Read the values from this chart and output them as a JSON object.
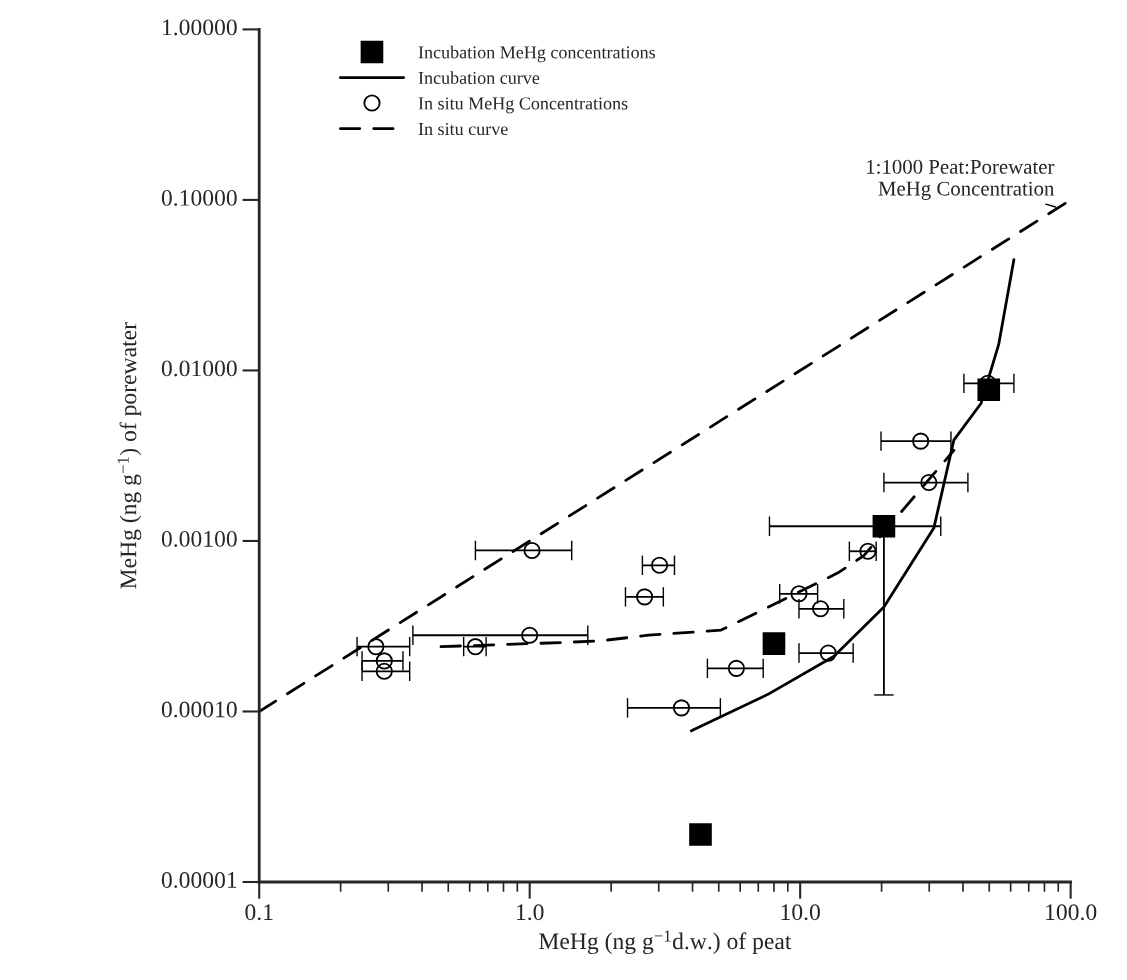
{
  "chart_data": {
    "type": "scatter",
    "xlabel": "MeHg (ng g$^{−1}$d.w.) of peat",
    "ylabel": "MeHg (ng g$^{−1}$) of porewater",
    "xlim": [
      0.1,
      100
    ],
    "xticks": [
      {
        "value": 0.1,
        "label": "0.1"
      },
      {
        "value": 1,
        "label": "1.0"
      },
      {
        "value": 10,
        "label": "10.0"
      },
      {
        "value": 100,
        "label": "100.0"
      }
    ],
    "ylim": [
      1e-05,
      1
    ],
    "yticks": [
      {
        "value": 1e-05,
        "label": "0.00001"
      },
      {
        "value": 0.0001,
        "label": "0.00010"
      },
      {
        "value": 0.001,
        "label": "0.00100"
      },
      {
        "value": 0.01,
        "label": "0.01000"
      },
      {
        "value": 0.1,
        "label": "0.10000"
      },
      {
        "value": 1,
        "label": "1.00000"
      }
    ],
    "log": "xy",
    "grid": false,
    "legend": "top left",
    "series": [
      {
        "name": "Incubation MeHg concentrations",
        "type": "scatter",
        "marker": "square",
        "color": "#000000",
        "x": [
          4.28,
          8.0,
          20.4,
          49.8
        ],
        "values": [
          1.9e-05,
          0.00025,
          0.00122,
          0.0077
        ],
        "xerrors": [
          null,
          null,
          [
            7.7,
            33.1
          ],
          null
        ],
        "errors": [
          null,
          null,
          [
            0.000125,
            0.00122
          ],
          null
        ]
      },
      {
        "name": "Incubation curve",
        "type": "line",
        "line_style": "solid",
        "color": "#000000",
        "x": [
          3.96,
          7.6,
          13.3,
          20.4,
          31.2,
          37.0,
          46.6,
          54.2,
          61.7
        ],
        "values": [
          7.7e-05,
          0.000126,
          0.00021,
          0.00041,
          0.00119,
          0.0039,
          0.0064,
          0.0142,
          0.0447
        ]
      },
      {
        "name": "In situ MeHg Concentrations",
        "type": "scatter",
        "marker": "circle",
        "color": "#000000",
        "x": [
          1.02,
          1.0,
          0.63,
          0.27,
          0.29,
          0.29,
          2.66,
          3.02,
          3.64,
          5.81,
          12.7,
          9.9,
          11.9,
          17.8,
          27.9,
          29.9,
          49.4
        ],
        "values": [
          0.00088,
          0.00028,
          0.00024,
          0.00024,
          0.000198,
          0.000172,
          0.00047,
          0.00072,
          0.000105,
          0.000179,
          0.00022,
          0.00049,
          0.0004,
          0.00087,
          0.00385,
          0.0022,
          0.0084
        ],
        "xerrors": [
          [
            0.63,
            1.43
          ],
          [
            0.37,
            1.64
          ],
          [
            0.57,
            0.69
          ],
          [
            0.23,
            0.36
          ],
          [
            0.24,
            0.34
          ],
          [
            0.24,
            0.36
          ],
          [
            2.26,
            3.12
          ],
          [
            2.61,
            3.43
          ],
          [
            2.3,
            5.07
          ],
          [
            4.54,
            7.3
          ],
          [
            9.9,
            15.7
          ],
          [
            8.4,
            11.6
          ],
          [
            9.9,
            14.5
          ],
          [
            15.2,
            19.1
          ],
          [
            19.9,
            36.1
          ],
          [
            20.4,
            41.7
          ],
          [
            40.3,
            61.7
          ]
        ]
      },
      {
        "name": "In situ curve",
        "type": "line",
        "line_style": "dashed",
        "color": "#000000",
        "x": [
          0.47,
          1.35,
          1.84,
          2.75,
          5.1,
          7.4,
          13.8,
          17.2,
          37.0
        ],
        "values": [
          0.00024,
          0.000254,
          0.00026,
          0.00028,
          0.0003,
          0.0004,
          0.00065,
          0.00082,
          0.0034
        ]
      },
      {
        "type": "line",
        "line_style": "dashed",
        "color": "#000000",
        "x": [
          0.1,
          100
        ],
        "values": [
          0.0001,
          0.1
        ]
      }
    ],
    "annotations": [
      {
        "text": "1:1000 Peat:Porewater\nMeHg Concentration",
        "x": 90,
        "y": 0.09
      }
    ]
  }
}
